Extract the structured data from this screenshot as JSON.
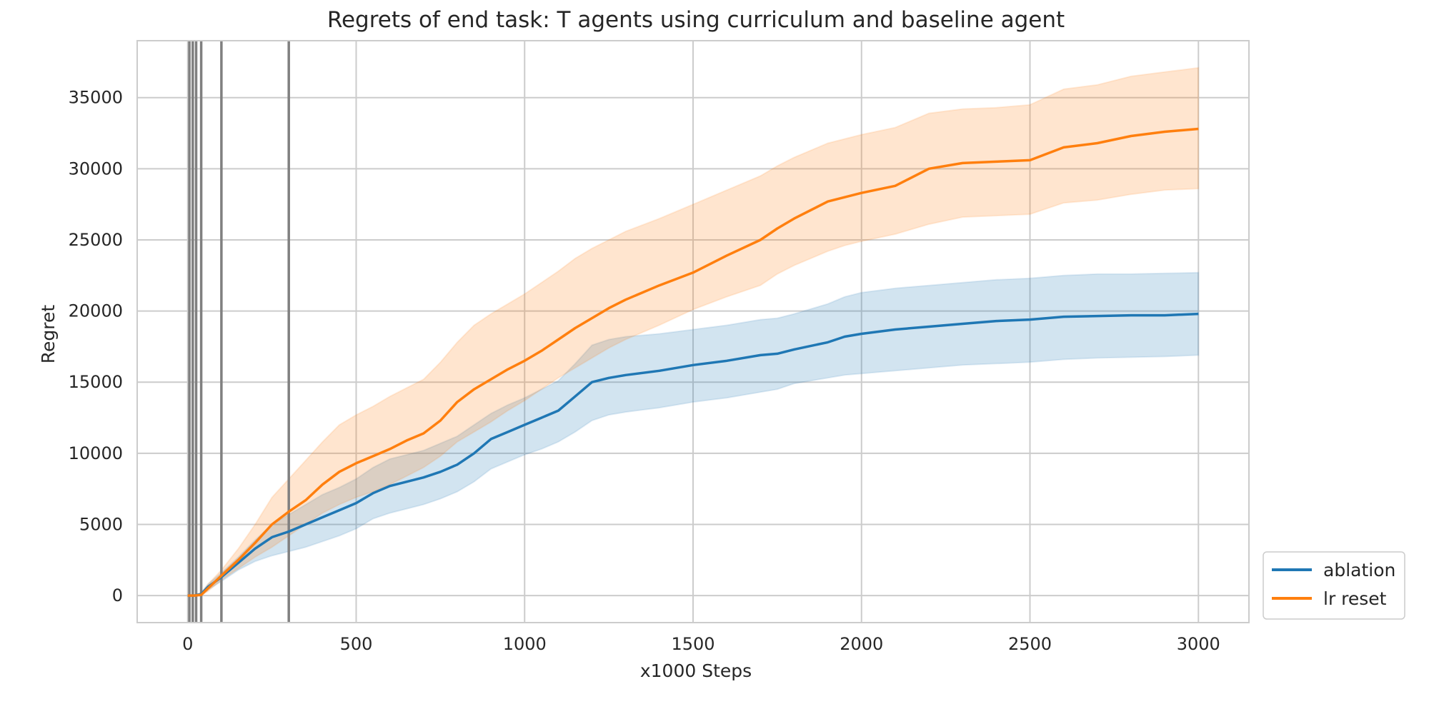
{
  "chart_data": {
    "type": "line",
    "title": "Regrets of end task: T agents using curriculum and baseline agent",
    "xlabel": "x1000 Steps",
    "ylabel": "Regret",
    "xlim": [
      -150,
      3150
    ],
    "ylim": [
      -1900,
      39000
    ],
    "x_ticks": [
      0,
      500,
      1000,
      1500,
      2000,
      2500,
      3000
    ],
    "y_ticks": [
      0,
      5000,
      10000,
      15000,
      20000,
      25000,
      30000,
      35000
    ],
    "grid": true,
    "legend_position": "outside-bottom-right",
    "vlines": [
      5,
      15,
      25,
      40,
      100,
      300
    ],
    "vline_color": "#808080",
    "series": [
      {
        "name": "ablation",
        "color": "#1f77b4",
        "x": [
          0,
          20,
          40,
          60,
          100,
          150,
          200,
          250,
          300,
          350,
          400,
          450,
          500,
          550,
          600,
          650,
          700,
          750,
          800,
          850,
          900,
          950,
          1000,
          1050,
          1100,
          1150,
          1200,
          1250,
          1300,
          1400,
          1500,
          1600,
          1700,
          1750,
          1800,
          1900,
          1950,
          2000,
          2100,
          2200,
          2300,
          2400,
          2500,
          2600,
          2700,
          2800,
          2900,
          3000
        ],
        "values": [
          0,
          0,
          100,
          600,
          1300,
          2300,
          3300,
          4100,
          4500,
          5000,
          5500,
          6000,
          6500,
          7200,
          7700,
          8000,
          8300,
          8700,
          9200,
          10000,
          11000,
          11500,
          12000,
          12500,
          13000,
          14000,
          15000,
          15300,
          15500,
          15800,
          16200,
          16500,
          16900,
          17000,
          17300,
          17800,
          18200,
          18400,
          18700,
          18900,
          19100,
          19300,
          19400,
          19600,
          19650,
          19700,
          19700,
          19800
        ],
        "upper": [
          0,
          50,
          200,
          800,
          1600,
          2700,
          3900,
          5000,
          5700,
          6400,
          7100,
          7600,
          8200,
          9000,
          9600,
          9900,
          10200,
          10700,
          11200,
          12000,
          12800,
          13400,
          13900,
          14500,
          15100,
          16300,
          17600,
          18000,
          18200,
          18400,
          18700,
          19000,
          19400,
          19500,
          19800,
          20500,
          21000,
          21300,
          21600,
          21800,
          22000,
          22200,
          22300,
          22500,
          22600,
          22600,
          22650,
          22700
        ],
        "lower": [
          0,
          -50,
          0,
          400,
          1000,
          1800,
          2400,
          2800,
          3100,
          3400,
          3800,
          4200,
          4700,
          5400,
          5800,
          6100,
          6400,
          6800,
          7300,
          8000,
          8900,
          9400,
          9900,
          10300,
          10800,
          11500,
          12300,
          12700,
          12900,
          13200,
          13600,
          13900,
          14300,
          14500,
          14900,
          15300,
          15500,
          15600,
          15800,
          16000,
          16200,
          16300,
          16400,
          16600,
          16700,
          16750,
          16800,
          16900
        ]
      },
      {
        "name": "lr reset",
        "color": "#ff7f0e",
        "x": [
          0,
          20,
          40,
          60,
          100,
          150,
          200,
          250,
          300,
          350,
          400,
          450,
          500,
          550,
          600,
          650,
          700,
          750,
          800,
          850,
          900,
          950,
          1000,
          1050,
          1100,
          1150,
          1200,
          1250,
          1300,
          1400,
          1500,
          1600,
          1700,
          1750,
          1800,
          1900,
          1950,
          2000,
          2100,
          2200,
          2300,
          2400,
          2500,
          2600,
          2700,
          2800,
          2900,
          3000
        ],
        "values": [
          0,
          0,
          50,
          500,
          1400,
          2500,
          3700,
          5000,
          5900,
          6700,
          7800,
          8700,
          9300,
          9800,
          10300,
          10900,
          11400,
          12300,
          13600,
          14500,
          15200,
          15900,
          16500,
          17200,
          18000,
          18800,
          19500,
          20200,
          20800,
          21800,
          22700,
          23900,
          25000,
          25800,
          26500,
          27700,
          28000,
          28300,
          28800,
          30000,
          30400,
          30500,
          30600,
          31500,
          31800,
          32300,
          32600,
          32800
        ],
        "upper": [
          0,
          50,
          200,
          800,
          1800,
          3300,
          5000,
          6900,
          8200,
          9500,
          10800,
          12000,
          12700,
          13300,
          14000,
          14600,
          15200,
          16400,
          17800,
          19000,
          19800,
          20500,
          21200,
          22000,
          22800,
          23700,
          24400,
          25000,
          25600,
          26500,
          27500,
          28500,
          29500,
          30200,
          30800,
          31800,
          32100,
          32400,
          32900,
          33900,
          34200,
          34300,
          34500,
          35600,
          35900,
          36500,
          36800,
          37100
        ],
        "lower": [
          0,
          -50,
          0,
          300,
          1100,
          1900,
          2700,
          3400,
          4200,
          5000,
          5800,
          6400,
          6900,
          7300,
          7800,
          8400,
          9000,
          9800,
          10800,
          11500,
          12200,
          13000,
          13700,
          14500,
          15300,
          16000,
          16700,
          17400,
          18000,
          19000,
          20100,
          21000,
          21800,
          22600,
          23200,
          24200,
          24600,
          24900,
          25400,
          26100,
          26600,
          26700,
          26800,
          27600,
          27800,
          28200,
          28500,
          28600
        ]
      }
    ]
  }
}
